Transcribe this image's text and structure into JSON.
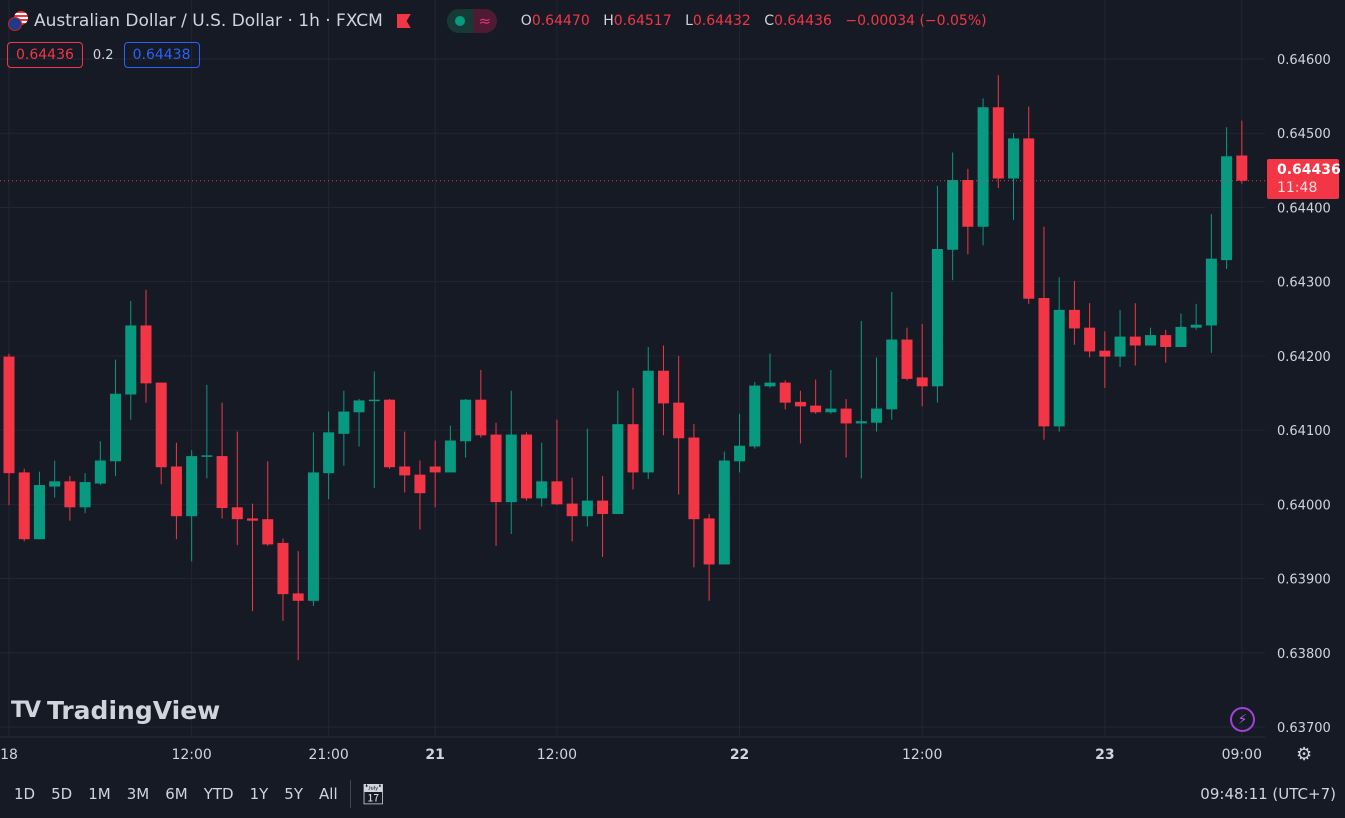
{
  "header": {
    "title": "Australian Dollar / U.S. Dollar · 1h · FXCM",
    "ohlc": [
      {
        "key": "O",
        "value": "0.64470"
      },
      {
        "key": "H",
        "value": "0.64517"
      },
      {
        "key": "L",
        "value": "0.64432"
      },
      {
        "key": "C",
        "value": "0.64436"
      }
    ],
    "change": "−0.00034 (−0.05%)",
    "sell_price": "0.64436",
    "spread": "0.2",
    "buy_price": "0.64438"
  },
  "last_price": {
    "price": "0.64436",
    "countdown": "11:48"
  },
  "logo": "TradingView",
  "bottom": {
    "ranges": [
      "1D",
      "5D",
      "1M",
      "3M",
      "6M",
      "YTD",
      "1Y",
      "5Y",
      "All"
    ],
    "clock": "09:48:11 (UTC+7)"
  },
  "colors": {
    "up": "#089981",
    "down": "#f23645",
    "background": "#161a25",
    "grid": "#232632"
  },
  "chart_data": {
    "type": "candlestick",
    "symbol": "AUDUSD",
    "interval": "1h",
    "yticks": [
      "0.64600",
      "0.64500",
      "0.64400",
      "0.64300",
      "0.64200",
      "0.64100",
      "0.64000",
      "0.63900",
      "0.63800",
      "0.63700"
    ],
    "ylim": [
      0.637,
      0.646
    ],
    "xticks": [
      {
        "label": "18",
        "candle": 0,
        "bold": false
      },
      {
        "label": "12:00",
        "candle": 12,
        "bold": false
      },
      {
        "label": "21:00",
        "candle": 21,
        "bold": false
      },
      {
        "label": "21",
        "candle": 28,
        "bold": true
      },
      {
        "label": "12:00",
        "candle": 36,
        "bold": false
      },
      {
        "label": "22",
        "candle": 48,
        "bold": true
      },
      {
        "label": "12:00",
        "candle": 60,
        "bold": false
      },
      {
        "label": "23",
        "candle": 72,
        "bold": true
      },
      {
        "label": "09:00",
        "candle": 81,
        "bold": false
      }
    ],
    "ohlc": [
      [
        0.64199,
        0.64203,
        0.63999,
        0.64042
      ],
      [
        0.64043,
        0.64048,
        0.6395,
        0.63953
      ],
      [
        0.63953,
        0.64044,
        0.63953,
        0.64026
      ],
      [
        0.64024,
        0.64059,
        0.64009,
        0.64031
      ],
      [
        0.64031,
        0.64038,
        0.63978,
        0.63996
      ],
      [
        0.63996,
        0.64042,
        0.63988,
        0.6403
      ],
      [
        0.64028,
        0.64085,
        0.64026,
        0.64059
      ],
      [
        0.64058,
        0.64195,
        0.64038,
        0.64149
      ],
      [
        0.64148,
        0.64274,
        0.64114,
        0.64241
      ],
      [
        0.64241,
        0.64289,
        0.64137,
        0.64163
      ],
      [
        0.64164,
        0.64164,
        0.64027,
        0.6405
      ],
      [
        0.64051,
        0.64083,
        0.63953,
        0.63984
      ],
      [
        0.63984,
        0.64073,
        0.63923,
        0.64065
      ],
      [
        0.64065,
        0.64161,
        0.64035,
        0.64066
      ],
      [
        0.64065,
        0.64137,
        0.63981,
        0.63995
      ],
      [
        0.63996,
        0.64098,
        0.63945,
        0.6398
      ],
      [
        0.63981,
        0.64001,
        0.63856,
        0.63978
      ],
      [
        0.6398,
        0.64058,
        0.63944,
        0.63946
      ],
      [
        0.63948,
        0.63954,
        0.63843,
        0.63879
      ],
      [
        0.6388,
        0.63937,
        0.6379,
        0.6387
      ],
      [
        0.6387,
        0.64097,
        0.63863,
        0.64043
      ],
      [
        0.64042,
        0.64125,
        0.64007,
        0.64097
      ],
      [
        0.64095,
        0.64153,
        0.64052,
        0.64125
      ],
      [
        0.64124,
        0.64142,
        0.64078,
        0.6414
      ],
      [
        0.6414,
        0.64179,
        0.64022,
        0.64141
      ],
      [
        0.64141,
        0.64142,
        0.64048,
        0.6405
      ],
      [
        0.64051,
        0.64098,
        0.64016,
        0.64039
      ],
      [
        0.6404,
        0.64059,
        0.63966,
        0.64015
      ],
      [
        0.64051,
        0.64086,
        0.63996,
        0.64043
      ],
      [
        0.64043,
        0.64106,
        0.64043,
        0.64086
      ],
      [
        0.64085,
        0.64142,
        0.64063,
        0.64141
      ],
      [
        0.64141,
        0.64181,
        0.6409,
        0.64093
      ],
      [
        0.64094,
        0.6411,
        0.63944,
        0.64003
      ],
      [
        0.64003,
        0.64153,
        0.6396,
        0.64094
      ],
      [
        0.64094,
        0.64097,
        0.64005,
        0.64008
      ],
      [
        0.64008,
        0.64083,
        0.63997,
        0.64031
      ],
      [
        0.64031,
        0.64114,
        0.63999,
        0.64
      ],
      [
        0.64001,
        0.64036,
        0.6395,
        0.63984
      ],
      [
        0.63984,
        0.64102,
        0.6397,
        0.64005
      ],
      [
        0.64005,
        0.64038,
        0.63929,
        0.63987
      ],
      [
        0.63987,
        0.64153,
        0.63987,
        0.64108
      ],
      [
        0.64108,
        0.64157,
        0.6402,
        0.64043
      ],
      [
        0.64043,
        0.64212,
        0.64034,
        0.6418
      ],
      [
        0.6418,
        0.64214,
        0.64093,
        0.64136
      ],
      [
        0.64137,
        0.642,
        0.64013,
        0.64089
      ],
      [
        0.6409,
        0.64108,
        0.63915,
        0.6398
      ],
      [
        0.63981,
        0.63987,
        0.6387,
        0.63919
      ],
      [
        0.63919,
        0.64071,
        0.63919,
        0.64059
      ],
      [
        0.64058,
        0.64122,
        0.64043,
        0.64079
      ],
      [
        0.64078,
        0.64165,
        0.64075,
        0.6416
      ],
      [
        0.64159,
        0.64203,
        0.64157,
        0.64164
      ],
      [
        0.64164,
        0.64167,
        0.64128,
        0.64137
      ],
      [
        0.64138,
        0.64153,
        0.64082,
        0.64132
      ],
      [
        0.64133,
        0.64168,
        0.64122,
        0.64124
      ],
      [
        0.64124,
        0.64181,
        0.64122,
        0.64129
      ],
      [
        0.64129,
        0.64142,
        0.64063,
        0.64109
      ],
      [
        0.64109,
        0.64247,
        0.64035,
        0.64112
      ],
      [
        0.6411,
        0.64198,
        0.64098,
        0.64129
      ],
      [
        0.64128,
        0.64286,
        0.64114,
        0.64222
      ],
      [
        0.64222,
        0.64238,
        0.64167,
        0.64169
      ],
      [
        0.64171,
        0.64243,
        0.64132,
        0.64159
      ],
      [
        0.64159,
        0.64429,
        0.64137,
        0.64344
      ],
      [
        0.64343,
        0.64474,
        0.64302,
        0.64437
      ],
      [
        0.64437,
        0.64452,
        0.64337,
        0.64374
      ],
      [
        0.64374,
        0.64547,
        0.64349,
        0.64535
      ],
      [
        0.64535,
        0.64578,
        0.64426,
        0.64439
      ],
      [
        0.64439,
        0.645,
        0.64383,
        0.64493
      ],
      [
        0.64493,
        0.64536,
        0.6427,
        0.64277
      ],
      [
        0.64278,
        0.64374,
        0.64087,
        0.64105
      ],
      [
        0.64105,
        0.64306,
        0.64098,
        0.64262
      ],
      [
        0.64262,
        0.64301,
        0.64215,
        0.64237
      ],
      [
        0.64238,
        0.64271,
        0.64198,
        0.64206
      ],
      [
        0.64207,
        0.64233,
        0.64157,
        0.64199
      ],
      [
        0.64199,
        0.64262,
        0.64185,
        0.64226
      ],
      [
        0.64226,
        0.64271,
        0.64187,
        0.64214
      ],
      [
        0.64214,
        0.64238,
        0.64214,
        0.64228
      ],
      [
        0.64228,
        0.64235,
        0.64191,
        0.64212
      ],
      [
        0.64212,
        0.64257,
        0.64212,
        0.64239
      ],
      [
        0.64238,
        0.6427,
        0.64235,
        0.64242
      ],
      [
        0.64241,
        0.64391,
        0.64204,
        0.64331
      ],
      [
        0.64329,
        0.64508,
        0.64317,
        0.64469
      ],
      [
        0.6447,
        0.64517,
        0.64432,
        0.64436
      ]
    ],
    "last": 0.64436
  }
}
